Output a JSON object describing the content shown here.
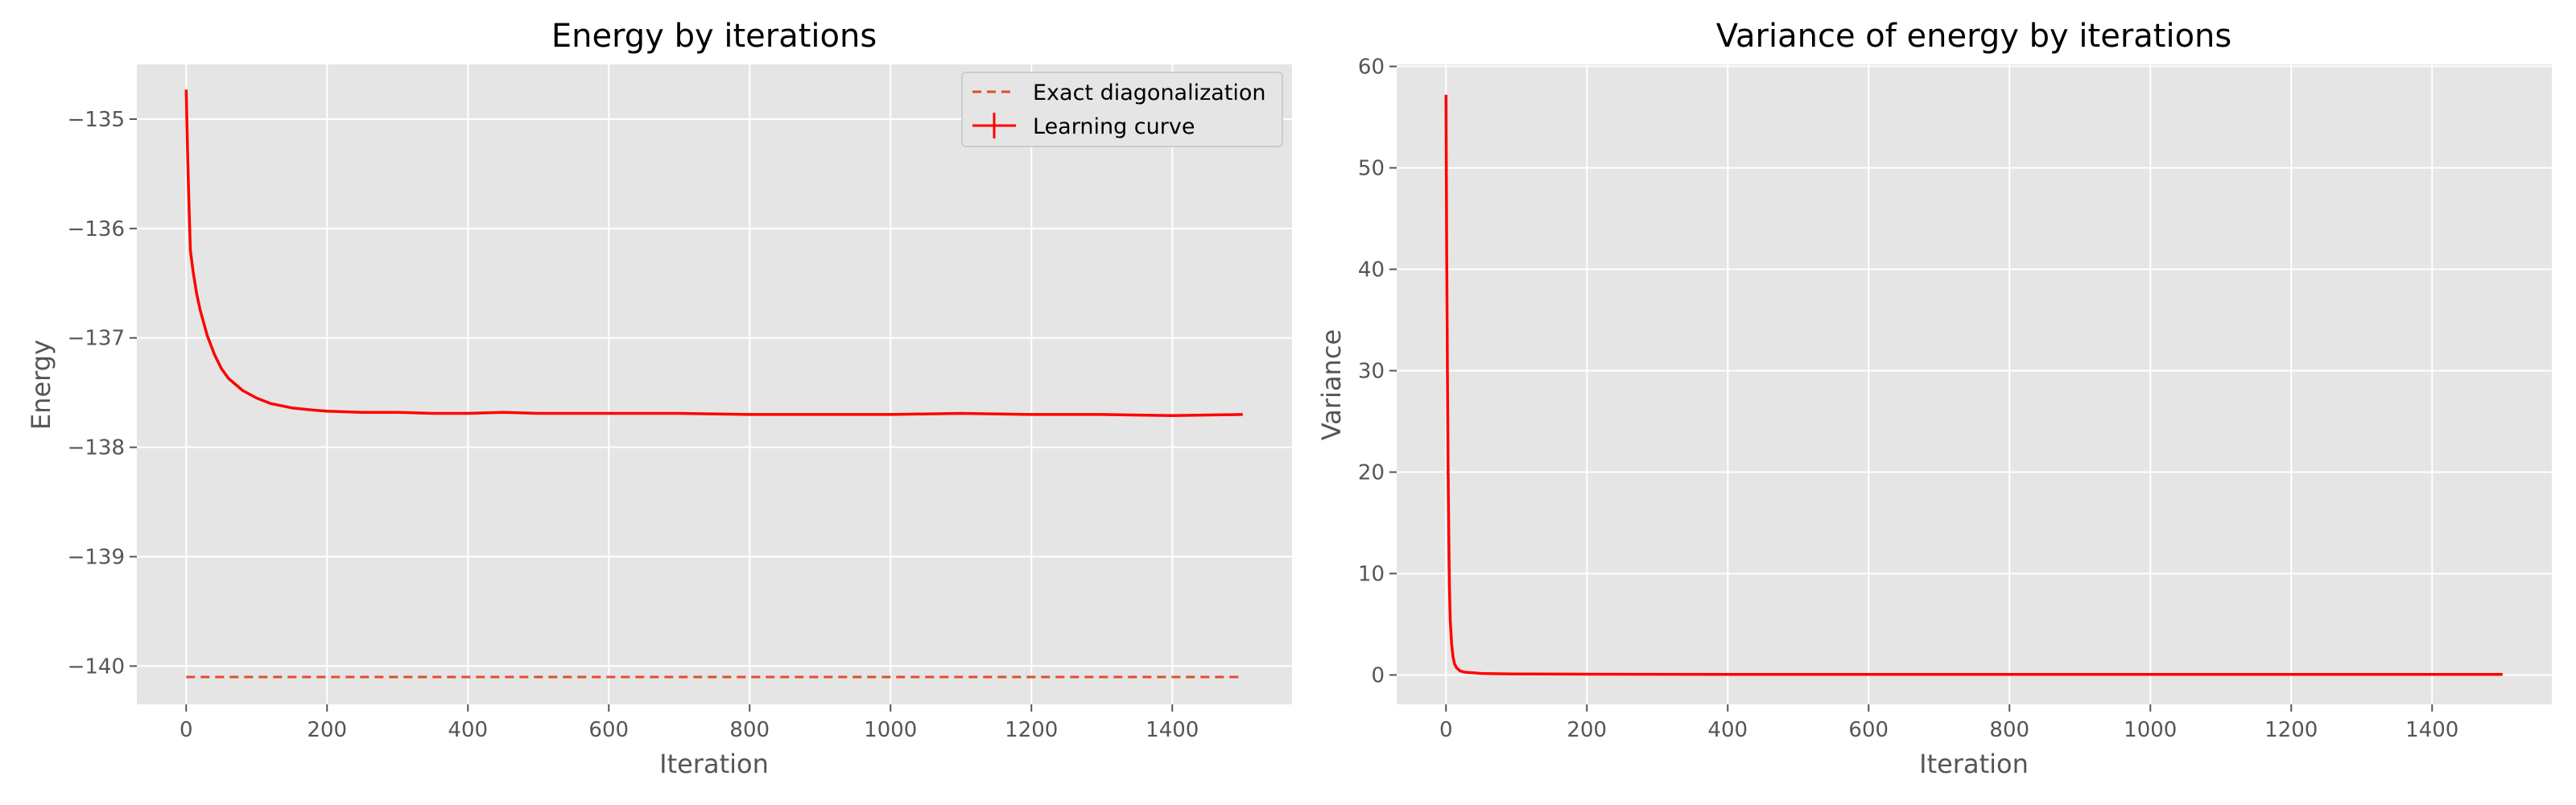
{
  "chart_data": [
    {
      "type": "line",
      "title": "Energy by iterations",
      "xlabel": "Iteration",
      "ylabel": "Energy",
      "xlim": [
        -70,
        1570
      ],
      "ylim": [
        -140.35,
        -134.5
      ],
      "xticks": [
        0,
        200,
        400,
        600,
        800,
        1000,
        1200,
        1400
      ],
      "xtick_labels": [
        "0",
        "200",
        "400",
        "600",
        "800",
        "1000",
        "1200",
        "1400"
      ],
      "yticks": [
        -140,
        -139,
        -138,
        -137,
        -136,
        -135
      ],
      "ytick_labels": [
        "−140",
        "−139",
        "−138",
        "−137",
        "−136",
        "−135"
      ],
      "grid": true,
      "legend": "top-right",
      "series": [
        {
          "name": "Exact diagonalization",
          "style": "dashed",
          "color": "#e24a33",
          "x": [
            0,
            1500
          ],
          "y": [
            -140.1,
            -140.1
          ]
        },
        {
          "name": "Learning curve",
          "style": "solid",
          "color": "#ff0000",
          "x": [
            0,
            2,
            4,
            6,
            10,
            15,
            20,
            30,
            40,
            50,
            60,
            80,
            100,
            120,
            150,
            180,
            200,
            250,
            300,
            350,
            400,
            450,
            500,
            600,
            700,
            800,
            900,
            1000,
            1100,
            1200,
            1300,
            1400,
            1500
          ],
          "y": [
            -134.73,
            -135.3,
            -135.8,
            -136.2,
            -136.4,
            -136.6,
            -136.75,
            -136.98,
            -137.15,
            -137.28,
            -137.37,
            -137.48,
            -137.55,
            -137.6,
            -137.64,
            -137.66,
            -137.67,
            -137.68,
            -137.68,
            -137.69,
            -137.69,
            -137.68,
            -137.69,
            -137.69,
            -137.69,
            -137.7,
            -137.7,
            -137.7,
            -137.69,
            -137.7,
            -137.7,
            -137.71,
            -137.7
          ]
        }
      ]
    },
    {
      "type": "line",
      "title": "Variance of energy by iterations",
      "xlabel": "Iteration",
      "ylabel": "Variance",
      "xlim": [
        -70,
        1570
      ],
      "ylim": [
        -2.9,
        60.2
      ],
      "xticks": [
        0,
        200,
        400,
        600,
        800,
        1000,
        1200,
        1400
      ],
      "xtick_labels": [
        "0",
        "200",
        "400",
        "600",
        "800",
        "1000",
        "1200",
        "1400"
      ],
      "yticks": [
        0,
        10,
        20,
        30,
        40,
        50,
        60
      ],
      "ytick_labels": [
        "0",
        "10",
        "20",
        "30",
        "40",
        "50",
        "60"
      ],
      "grid": true,
      "series": [
        {
          "style": "solid",
          "color": "#ff0000",
          "x": [
            0,
            1,
            2,
            3,
            4,
            5,
            6,
            8,
            10,
            12,
            15,
            20,
            25,
            30,
            40,
            50,
            75,
            100,
            200,
            400,
            600,
            800,
            1000,
            1200,
            1400,
            1500
          ],
          "y": [
            57.2,
            42,
            30,
            20,
            13,
            8.5,
            5.5,
            3,
            1.8,
            1.1,
            0.7,
            0.4,
            0.3,
            0.25,
            0.2,
            0.15,
            0.12,
            0.1,
            0.08,
            0.06,
            0.05,
            0.05,
            0.05,
            0.05,
            0.05,
            0.05
          ]
        }
      ]
    }
  ]
}
